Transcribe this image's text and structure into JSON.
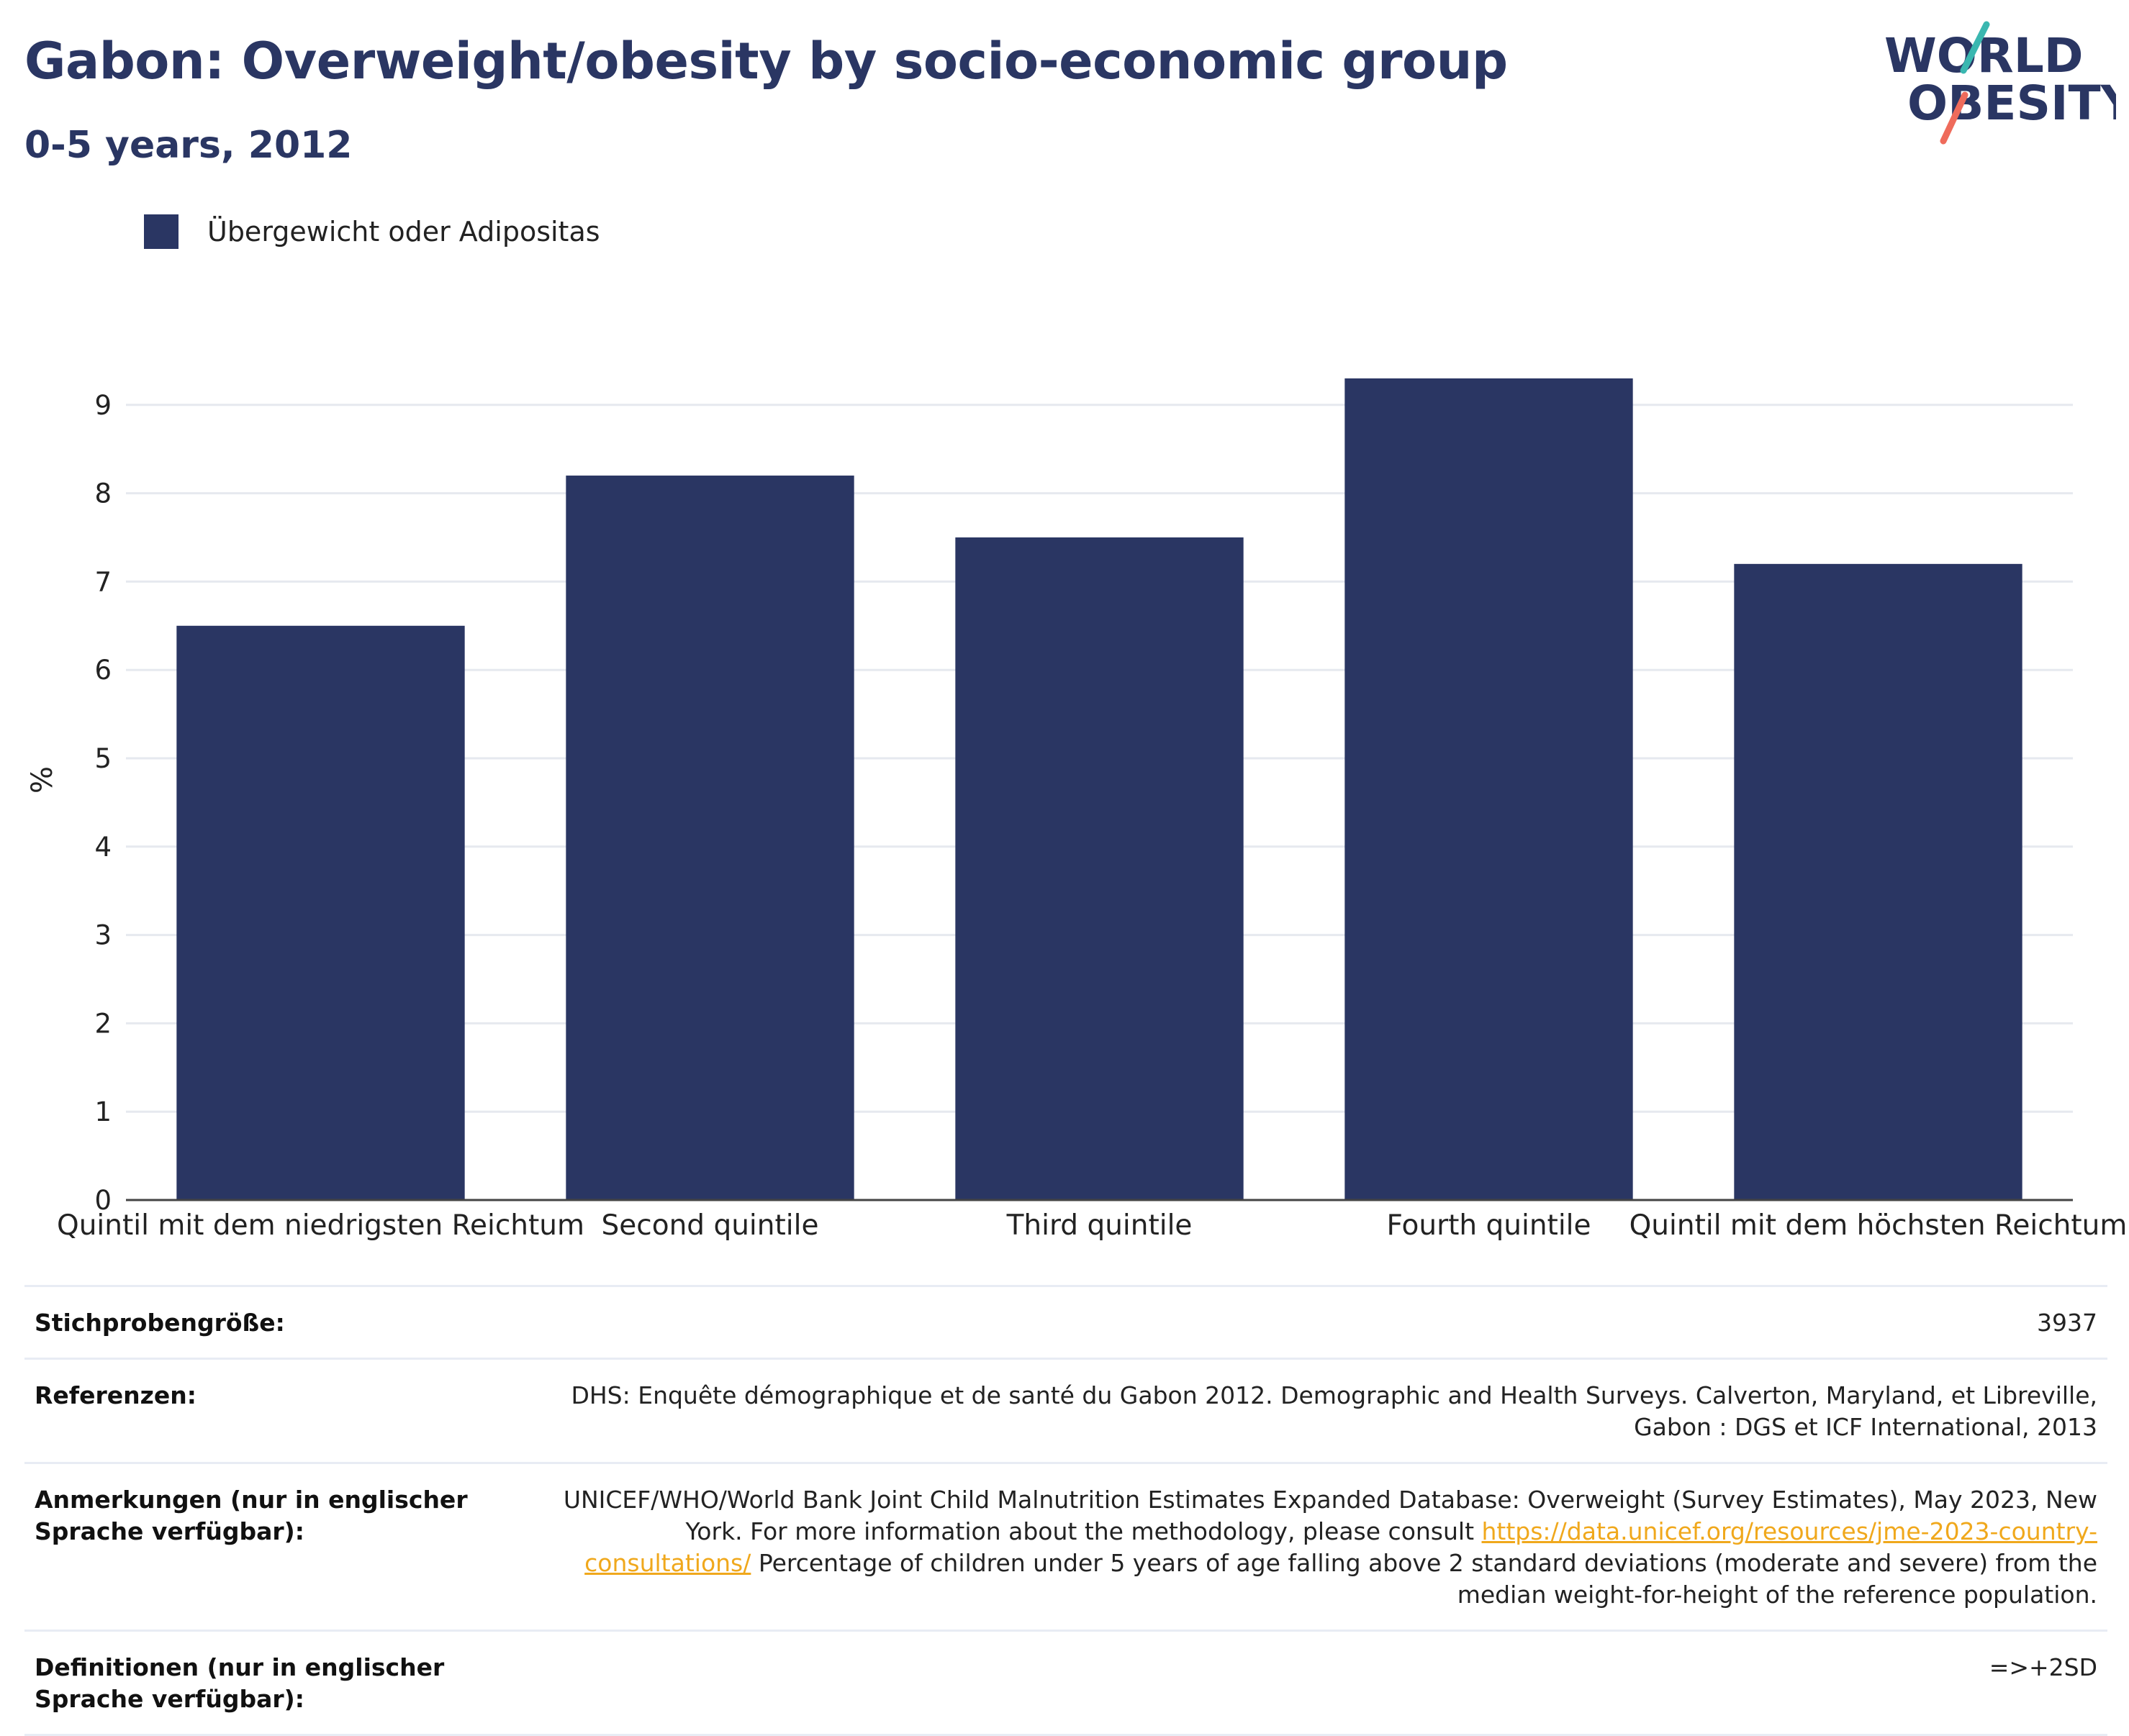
{
  "header": {
    "title": "Gabon: Overweight/obesity by socio-economic group",
    "subtitle": "0-5 years, 2012"
  },
  "logo": {
    "line1": "WORLD",
    "line2": "OBESITY"
  },
  "legend": {
    "label": "Übergewicht oder Adipositas",
    "color": "#2a3663"
  },
  "chart_data": {
    "type": "bar",
    "categories": [
      "Quintil mit dem niedrigsten Reichtum",
      "Second quintile",
      "Third quintile",
      "Fourth quintile",
      "Quintil mit dem höchsten Reichtum"
    ],
    "series": [
      {
        "name": "Übergewicht oder Adipositas",
        "values": [
          6.5,
          8.2,
          7.5,
          9.3,
          7.2
        ]
      }
    ],
    "ylabel": "%",
    "ylim": [
      0,
      10
    ],
    "yticks": [
      0,
      1,
      2,
      3,
      4,
      5,
      6,
      7,
      8,
      9
    ],
    "grid": true,
    "legend_position": "top-left",
    "bar_color": "#2a3663"
  },
  "info_table": {
    "rows": [
      {
        "label": "Stichprobengröße:",
        "value": "3937"
      },
      {
        "label": "Referenzen:",
        "value": "DHS: Enquête démographique et de santé du Gabon 2012. Demographic and Health Surveys. Calverton, Maryland, et Libreville, Gabon : DGS et ICF International, 2013"
      },
      {
        "label": "Anmerkungen (nur in englischer Sprache verfügbar):",
        "value_before_link": "UNICEF/WHO/World Bank Joint Child Malnutrition Estimates Expanded Database: Overweight (Survey Estimates), May 2023, New York. For more information about the methodology, please consult ",
        "link": "https://data.unicef.org/resources/jme-2023-country-consultations/",
        "value_after_link": " Percentage of children under 5 years of age falling above 2 standard deviations (moderate and severe) from the median weight-for-height of the reference population."
      },
      {
        "label": "Definitionen (nur in englischer Sprache verfügbar):",
        "value": "=>+2SD"
      }
    ]
  }
}
